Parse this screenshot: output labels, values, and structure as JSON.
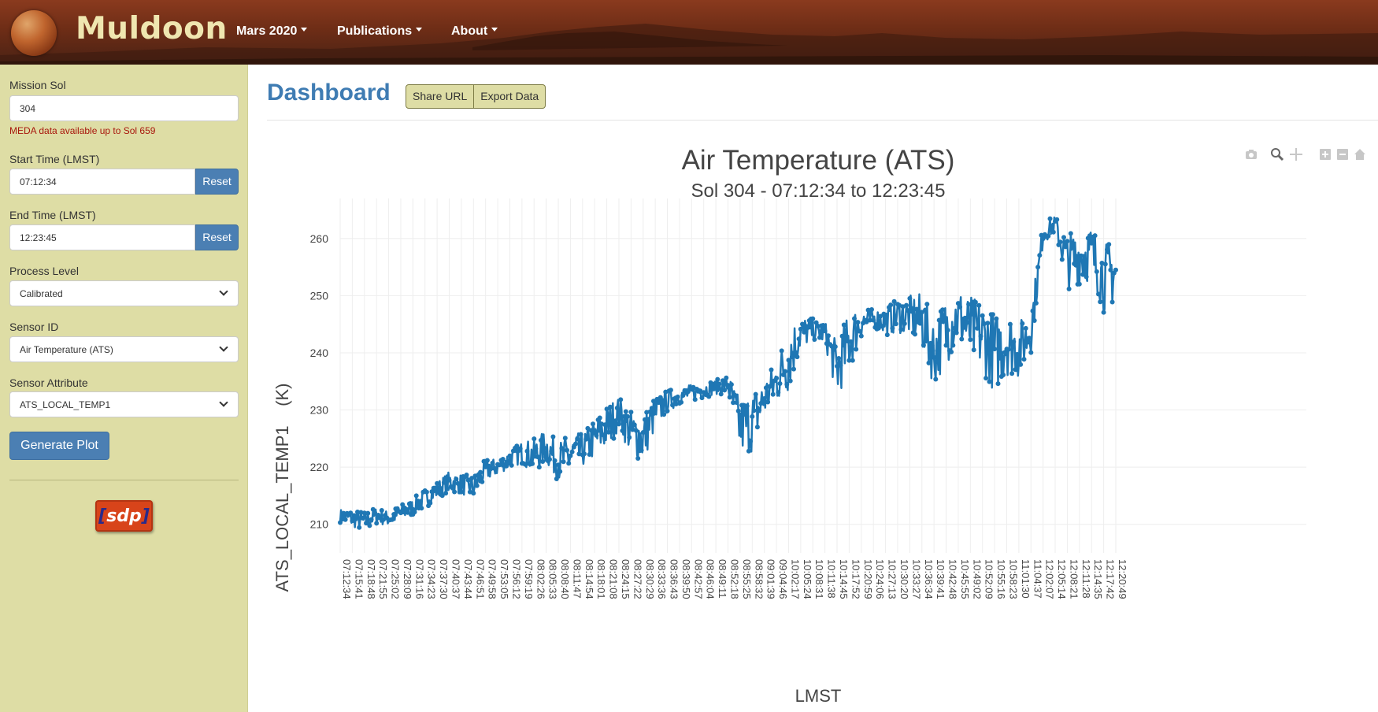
{
  "header": {
    "brand": "Muldoon",
    "nav": [
      {
        "label": "Mars 2020"
      },
      {
        "label": "Publications"
      },
      {
        "label": "About"
      }
    ]
  },
  "sidebar": {
    "mission_sol": {
      "label": "Mission Sol",
      "value": "304"
    },
    "meda_note": "MEDA data available up to Sol 659",
    "start_time": {
      "label": "Start Time (LMST)",
      "value": "07:12:34",
      "reset": "Reset"
    },
    "end_time": {
      "label": "End Time (LMST)",
      "value": "12:23:45",
      "reset": "Reset"
    },
    "process_level": {
      "label": "Process Level",
      "value": "Calibrated"
    },
    "sensor_id": {
      "label": "Sensor ID",
      "value": "Air Temperature (ATS)"
    },
    "sensor_attribute": {
      "label": "Sensor Attribute",
      "value": "ATS_LOCAL_TEMP1"
    },
    "generate_label": "Generate Plot",
    "logo_text": "sdp"
  },
  "main": {
    "title": "Dashboard",
    "share_label": "Share URL",
    "export_label": "Export Data"
  },
  "modebar_icons": [
    "camera-icon",
    "zoom-icon",
    "pan-icon",
    "zoom-in-icon",
    "zoom-out-icon",
    "home-icon"
  ],
  "chart_data": {
    "type": "scatter",
    "title": "Air Temperature (ATS)",
    "subtitle": "Sol 304 - 07:12:34 to 12:23:45",
    "xlabel": "LMST",
    "ylabel": "ATS_LOCAL_TEMP1    (K)",
    "ylim": [
      205,
      267
    ],
    "y_ticks": [
      210,
      220,
      230,
      240,
      250,
      260
    ],
    "x_ticks": [
      "07:12:34",
      "07:15:41",
      "07:18:48",
      "07:21:55",
      "07:25:02",
      "07:28:09",
      "07:31:16",
      "07:34:23",
      "07:37:30",
      "07:40:37",
      "07:43:44",
      "07:46:51",
      "07:49:58",
      "07:53:05",
      "07:56:12",
      "07:59:19",
      "08:02:26",
      "08:05:33",
      "08:08:40",
      "08:11:47",
      "08:14:54",
      "08:18:01",
      "08:21:08",
      "08:24:15",
      "08:27:22",
      "08:30:29",
      "08:33:36",
      "08:36:43",
      "08:39:50",
      "08:42:57",
      "08:46:04",
      "08:49:11",
      "08:52:18",
      "08:55:25",
      "08:58:32",
      "09:01:39",
      "09:04:46",
      "10:02:17",
      "10:05:24",
      "10:08:31",
      "10:11:38",
      "10:14:45",
      "10:17:52",
      "10:20:59",
      "10:24:06",
      "10:27:13",
      "10:30:20",
      "10:33:27",
      "10:36:34",
      "10:39:41",
      "10:42:48",
      "10:45:55",
      "10:49:02",
      "10:52:09",
      "10:55:16",
      "10:58:23",
      "11:01:30",
      "11:04:37",
      "12:02:07",
      "12:05:14",
      "12:08:21",
      "12:11:28",
      "12:14:35",
      "12:17:42",
      "12:20:49"
    ],
    "series_color": "#1f77b4",
    "trend_y": [
      211.5,
      211.0,
      210.5,
      211.5,
      211.0,
      212.0,
      213.0,
      214.5,
      216.0,
      217.5,
      217.0,
      216.5,
      219.5,
      220.0,
      221.5,
      222.5,
      222.0,
      223.5,
      221.0,
      222.0,
      223.0,
      225.0,
      227.0,
      229.5,
      226.0,
      225.0,
      229.5,
      231.5,
      232.5,
      233.0,
      233.5,
      234.0,
      234.5,
      227.0,
      228.0,
      232.0,
      235.0,
      239.0,
      243.5,
      244.0,
      243.5,
      237.0,
      242.0,
      245.5,
      246.0,
      245.5,
      246.5,
      246.5,
      245.5,
      240.0,
      244.0,
      246.5,
      244.0,
      243.0,
      240.0,
      242.0,
      240.5,
      244.0,
      261.0,
      262.5,
      256.0,
      257.0,
      257.5,
      253.0,
      254.5
    ],
    "noise": [
      1.2,
      1.5,
      1.8,
      1.5,
      1.3,
      1.5,
      1.5,
      1.8,
      1.5,
      1.8,
      1.8,
      2.0,
      2.0,
      1.5,
      1.5,
      2.0,
      3.0,
      3.0,
      3.5,
      4.0,
      3.0,
      3.5,
      4.0,
      3.0,
      4.0,
      4.5,
      3.0,
      2.0,
      1.5,
      1.5,
      1.5,
      1.2,
      2.0,
      5.0,
      5.5,
      3.5,
      4.0,
      6.0,
      3.0,
      2.0,
      2.0,
      5.0,
      5.5,
      3.0,
      1.5,
      2.5,
      3.0,
      3.5,
      5.0,
      6.0,
      6.0,
      5.0,
      6.0,
      6.5,
      7.0,
      6.0,
      5.0,
      4.0,
      2.0,
      1.5,
      5.0,
      5.0,
      5.0,
      6.0,
      6.0
    ]
  }
}
